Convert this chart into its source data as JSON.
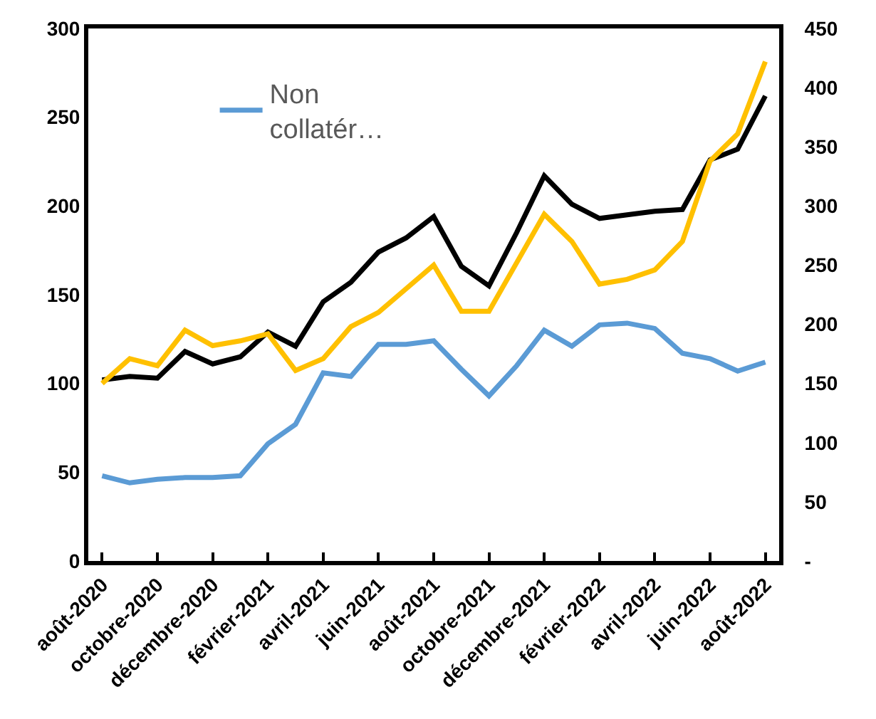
{
  "chart_data": {
    "type": "line",
    "categories": [
      "août-2020",
      null,
      "octobre-2020",
      null,
      "décembre-2020",
      null,
      "février-2021",
      null,
      "avril-2021",
      null,
      "juin-2021",
      null,
      "août-2021",
      null,
      "octobre-2021",
      null,
      "décembre-2021",
      null,
      "février-2022",
      null,
      "avril-2022",
      null,
      "juin-2022",
      null,
      "août-2022"
    ],
    "series": [
      {
        "name": "Non collatér…",
        "color": "#5b9bd5",
        "values": [
          48,
          44,
          46,
          47,
          47,
          48,
          66,
          77,
          106,
          104,
          122,
          122,
          124,
          108,
          93,
          110,
          130,
          121,
          133,
          134,
          131,
          117,
          114,
          107,
          112
        ]
      },
      {
        "color": "#ffc000",
        "axis": "y2",
        "values": [
          150,
          171,
          165,
          195,
          182,
          186,
          192,
          161,
          171,
          198,
          210,
          230,
          250,
          211,
          211,
          252,
          293,
          270,
          234,
          238,
          246,
          270,
          338,
          361,
          422
        ]
      },
      {
        "color": "#000000",
        "values": [
          102,
          104,
          103,
          118,
          111,
          115,
          129,
          121,
          146,
          157,
          174,
          182,
          194,
          166,
          155,
          185,
          217,
          201,
          193,
          195,
          197,
          198,
          226,
          232,
          262
        ]
      }
    ],
    "ylim": [
      0,
      300
    ],
    "yticks": [
      0,
      50,
      100,
      150,
      200,
      250,
      300
    ],
    "y2lim": [
      0,
      450
    ],
    "y2ticks": [
      {
        "value": 0,
        "label": "-"
      },
      50,
      100,
      150,
      200,
      250,
      300,
      350,
      400,
      450
    ],
    "legend": "top left",
    "line_style": "solid",
    "marker": "none"
  }
}
